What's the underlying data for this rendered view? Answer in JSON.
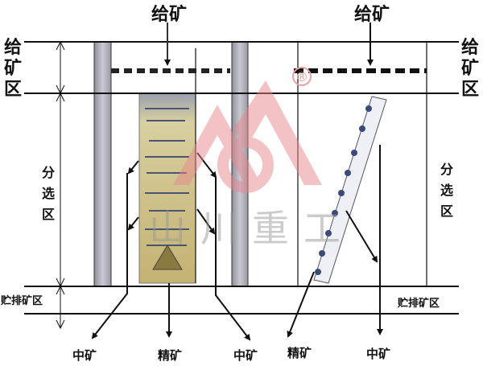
{
  "labels": {
    "feed_top_left": "给矿",
    "feed_top_right": "给矿",
    "feed_zone_left": [
      "给",
      "矿",
      "区"
    ],
    "feed_zone_right": [
      "给",
      "矿",
      "区"
    ],
    "separation_zone_left": [
      "分",
      "选",
      "区"
    ],
    "separation_zone_right": [
      "分",
      "选",
      "区"
    ],
    "discharge_zone_left": "贮排矿区",
    "discharge_zone_right": "贮排矿区",
    "outputs": [
      "中矿",
      "精矿",
      "中矿",
      "精矿",
      "中矿"
    ]
  },
  "watermark": {
    "text": "山川重工",
    "registered": "®",
    "color": "#e8868c"
  }
}
